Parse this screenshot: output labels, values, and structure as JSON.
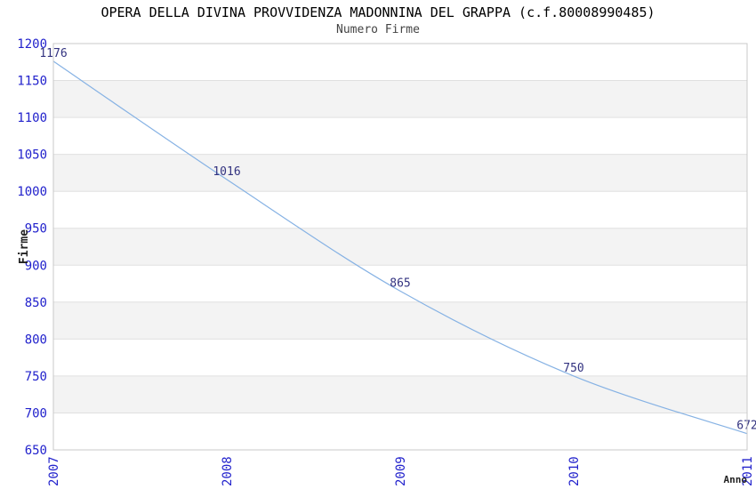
{
  "title": "OPERA DELLA DIVINA PROVVIDENZA MADONNINA DEL GRAPPA (c.f.80008990485)",
  "subtitle": "Numero Firme",
  "chart_data": {
    "type": "line",
    "categories": [
      "2007",
      "2008",
      "2009",
      "2010",
      "2011"
    ],
    "values": [
      1176,
      1016,
      865,
      750,
      672
    ],
    "point_labels": [
      "1176",
      "1016",
      "865",
      "750",
      "672"
    ],
    "title": "OPERA DELLA DIVINA PROVVIDENZA MADONNINA DEL GRAPPA (c.f.80008990485)",
    "subtitle": "Numero Firme",
    "xlabel": "Anno",
    "ylabel": "Firme",
    "ylim": [
      650,
      1200
    ],
    "ytick_step": 50,
    "yticks": [
      1200,
      1150,
      1100,
      1050,
      1000,
      950,
      900,
      850,
      800,
      750,
      700,
      650
    ],
    "grid": "horizontal",
    "alternating_bands": true,
    "line_style": "smooth",
    "legend_position": "none"
  },
  "colors": {
    "line": "#86b2e4",
    "tick_label": "#2222cc",
    "point_label": "#333380",
    "band": "#f3f3f3",
    "gridline": "#e0e0e0",
    "plot_border": "#c8c8c8",
    "plot_background": "#ffffff",
    "title": "#000000",
    "subtitle": "#444444",
    "axis_title": "#222222"
  }
}
